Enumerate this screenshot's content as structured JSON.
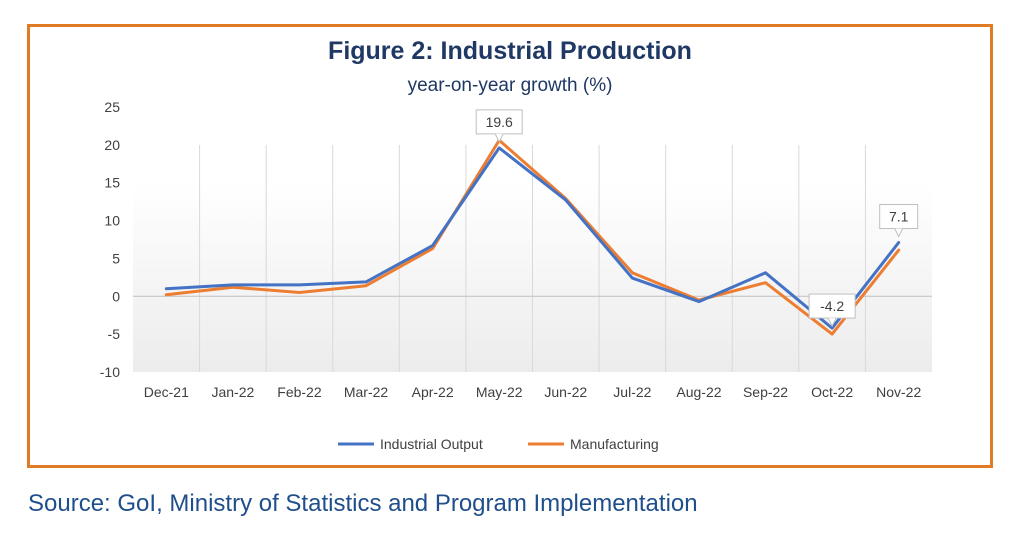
{
  "chart_data": {
    "type": "line",
    "title": "Figure 2: Industrial Production",
    "subtitle": "year-on-year growth (%)",
    "categories": [
      "Dec-21",
      "Jan-22",
      "Feb-22",
      "Mar-22",
      "Apr-22",
      "May-22",
      "Jun-22",
      "Jul-22",
      "Aug-22",
      "Sep-22",
      "Oct-22",
      "Nov-22"
    ],
    "yticks": [
      "25",
      "20",
      "15",
      "10",
      "5",
      "0",
      "-5",
      "-10"
    ],
    "ylim": [
      -10,
      25
    ],
    "series": [
      {
        "name": "Industrial Output",
        "color": "#4472c4",
        "values": [
          1.0,
          1.5,
          1.5,
          1.9,
          6.7,
          19.6,
          12.7,
          2.4,
          -0.7,
          3.1,
          -4.2,
          7.1
        ]
      },
      {
        "name": "Manufacturing",
        "color": "#ed7d31",
        "values": [
          0.2,
          1.2,
          0.5,
          1.4,
          6.3,
          20.6,
          12.9,
          3.1,
          -0.5,
          1.8,
          -5.0,
          6.1
        ]
      }
    ],
    "data_labels": [
      {
        "series": 0,
        "index": 5,
        "text": "19.6"
      },
      {
        "series": 0,
        "index": 10,
        "text": "-4.2"
      },
      {
        "series": 0,
        "index": 11,
        "text": "7.1"
      }
    ],
    "legend_position": "bottom",
    "grid": "vertical"
  },
  "source": "Source: GoI, Ministry of Statistics and Program Implementation",
  "colors": {
    "frame": "#e07b24",
    "title": "#1f3864",
    "source": "#1f4e8c"
  }
}
